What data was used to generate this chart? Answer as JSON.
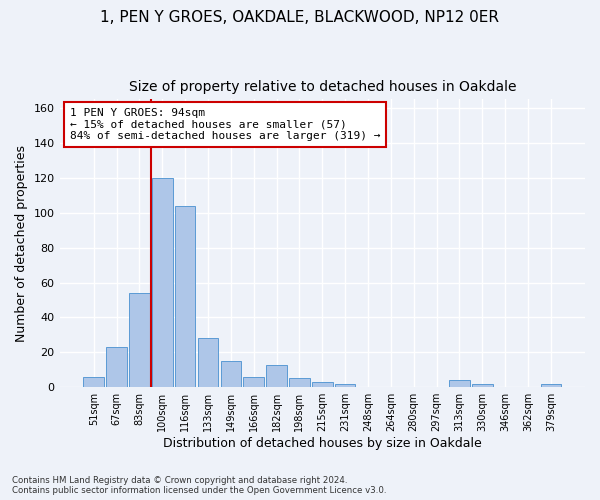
{
  "title": "1, PEN Y GROES, OAKDALE, BLACKWOOD, NP12 0ER",
  "subtitle": "Size of property relative to detached houses in Oakdale",
  "xlabel": "Distribution of detached houses by size in Oakdale",
  "ylabel": "Number of detached properties",
  "bin_labels": [
    "51sqm",
    "67sqm",
    "83sqm",
    "100sqm",
    "116sqm",
    "133sqm",
    "149sqm",
    "166sqm",
    "182sqm",
    "198sqm",
    "215sqm",
    "231sqm",
    "248sqm",
    "264sqm",
    "280sqm",
    "297sqm",
    "313sqm",
    "330sqm",
    "346sqm",
    "362sqm",
    "379sqm"
  ],
  "bar_values": [
    6,
    23,
    54,
    120,
    104,
    28,
    15,
    6,
    13,
    5,
    3,
    2,
    0,
    0,
    0,
    0,
    4,
    2,
    0,
    0,
    2
  ],
  "bar_color": "#aec6e8",
  "bar_edge_color": "#5b9bd5",
  "ylim": [
    0,
    165
  ],
  "yticks": [
    0,
    20,
    40,
    60,
    80,
    100,
    120,
    140,
    160
  ],
  "vline_color": "#cc0000",
  "annotation_box_text": "1 PEN Y GROES: 94sqm\n← 15% of detached houses are smaller (57)\n84% of semi-detached houses are larger (319) →",
  "footnote": "Contains HM Land Registry data © Crown copyright and database right 2024.\nContains public sector information licensed under the Open Government Licence v3.0.",
  "bg_color": "#eef2f9",
  "grid_color": "#ffffff",
  "title_fontsize": 11,
  "subtitle_fontsize": 10,
  "xlabel_fontsize": 9,
  "ylabel_fontsize": 9
}
